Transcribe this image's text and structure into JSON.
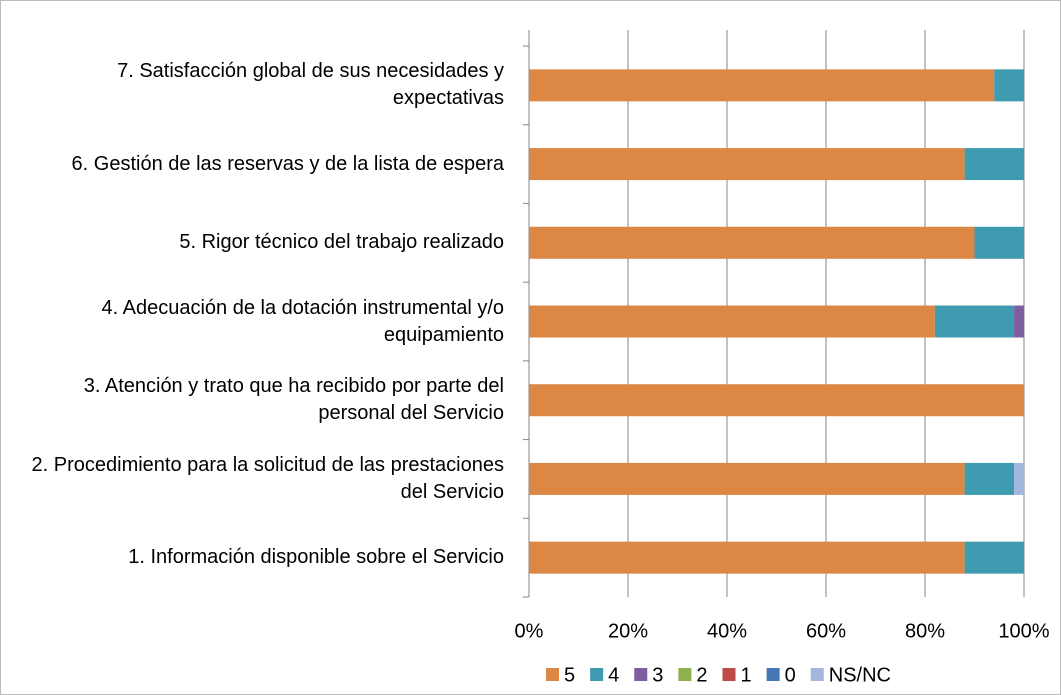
{
  "chart_data": {
    "type": "stacked-bar-horizontal",
    "categories": [
      "1. Información disponible sobre el Servicio",
      "2. Procedimiento para la solicitud de las prestaciones del Servicio",
      "3. Atención y trato que ha recibido por parte del personal del Servicio",
      "4. Adecuación de la dotación instrumental y/o equipamiento",
      "5. Rigor técnico del trabajo realizado",
      "6. Gestión de las reservas y de la lista de espera",
      "7. Satisfacción global de sus necesidades y expectativas"
    ],
    "series": [
      {
        "name": "5",
        "color": "#dd8744",
        "values": [
          88,
          88,
          100,
          82,
          90,
          88,
          94
        ]
      },
      {
        "name": "4",
        "color": "#3f9bb0",
        "values": [
          12,
          10,
          0,
          16,
          10,
          12,
          6
        ]
      },
      {
        "name": "3",
        "color": "#7d5fa0",
        "values": [
          0,
          0,
          0,
          2,
          0,
          0,
          0
        ]
      },
      {
        "name": "2",
        "color": "#8fb04e",
        "values": [
          0,
          0,
          0,
          0,
          0,
          0,
          0
        ]
      },
      {
        "name": "1",
        "color": "#bf4b48",
        "values": [
          0,
          0,
          0,
          0,
          0,
          0,
          0
        ]
      },
      {
        "name": "0",
        "color": "#4677b4",
        "values": [
          0,
          0,
          0,
          0,
          0,
          0,
          0
        ]
      },
      {
        "name": "NS/NC",
        "color": "#a3b6dd",
        "values": [
          0,
          2,
          0,
          0,
          0,
          0,
          0
        ]
      }
    ],
    "xlim": [
      0,
      100
    ],
    "xticks": [
      {
        "value": 0,
        "label": "0%"
      },
      {
        "value": 20,
        "label": "20%"
      },
      {
        "value": 40,
        "label": "40%"
      },
      {
        "value": 60,
        "label": "60%"
      },
      {
        "value": 80,
        "label": "80%"
      },
      {
        "value": 100,
        "label": "100%"
      }
    ],
    "grid": true,
    "legend": "bottom"
  }
}
